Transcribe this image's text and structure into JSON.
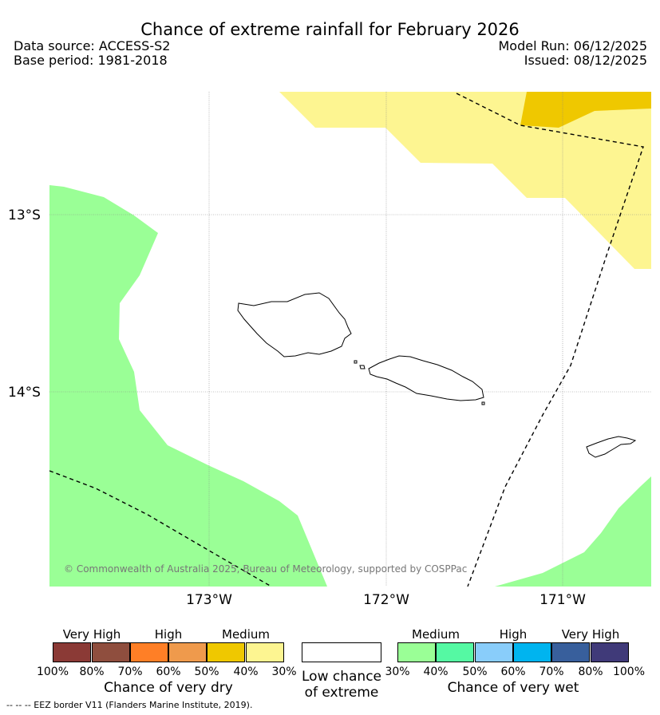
{
  "title": "Chance of extreme rainfall for February 2026",
  "header": {
    "data_source": "Data source: ACCESS-S2",
    "base_period": "Base period: 1981-2018",
    "model_run": "Model Run: 06/12/2025",
    "issued": "Issued: 08/12/2025"
  },
  "map": {
    "lat_labels": [
      "13°S",
      "14°S"
    ],
    "lon_labels": [
      "173°W",
      "172°W",
      "171°W"
    ],
    "copyright": "© Commonwealth of Australia 2025, Bureau of Meteorology, supported by COSPPac",
    "regions": [
      {
        "name": "medium-dry",
        "label": "Medium",
        "color": "#fdf591"
      },
      {
        "name": "medium-high-dry",
        "label": "Medium",
        "color": "#efc800"
      },
      {
        "name": "medium-wet",
        "label": "Medium",
        "color": "#9aff96"
      }
    ]
  },
  "legend": {
    "dry": {
      "headings": [
        "Very High",
        "High",
        "Medium"
      ],
      "ticks": [
        "100%",
        "80%",
        "70%",
        "60%",
        "50%",
        "40%",
        "30%"
      ],
      "colors": [
        "#8b3a36",
        "#8f4e3e",
        "#ff7f26",
        "#ef9a4c",
        "#efc800",
        "#fdf591"
      ],
      "caption": "Chance of very dry"
    },
    "low": {
      "caption_line1": "Low chance",
      "caption_line2": "of extreme"
    },
    "wet": {
      "headings": [
        "Medium",
        "High",
        "Very High"
      ],
      "ticks": [
        "30%",
        "40%",
        "50%",
        "60%",
        "70%",
        "80%",
        "100%"
      ],
      "colors": [
        "#9aff96",
        "#55f9a3",
        "#89cdfa",
        "#00b4ef",
        "#385f9c",
        "#403a79"
      ],
      "caption": "Chance of very wet"
    }
  },
  "footer": {
    "eez_note": "--  --  -- EEZ border V11 (Flanders Marine Institute, 2019)."
  }
}
